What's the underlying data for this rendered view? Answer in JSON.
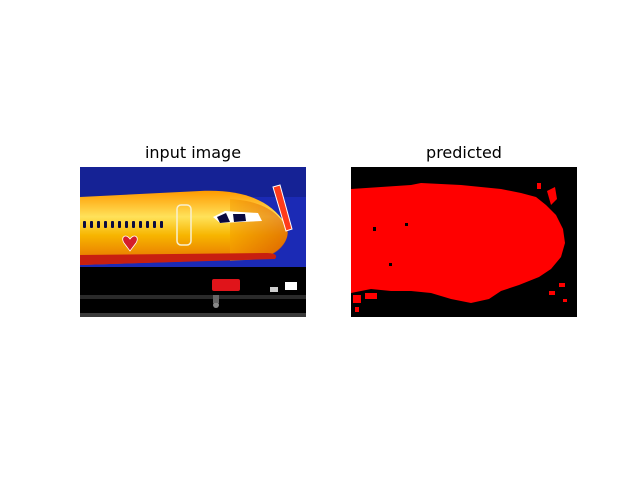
{
  "figure": {
    "panels": [
      {
        "title": "input image"
      },
      {
        "title": "predicted"
      }
    ]
  },
  "colors": {
    "sky": "#1b2ab5",
    "fuselage_orange": "#f5a000",
    "fuselage_highlight": "#ffe25a",
    "livery_red": "#e0141a",
    "mask_red": "#ff0000",
    "mask_background": "#000000",
    "ground": "#000000"
  },
  "icons": [
    "airplane-photo",
    "segmentation-mask"
  ]
}
